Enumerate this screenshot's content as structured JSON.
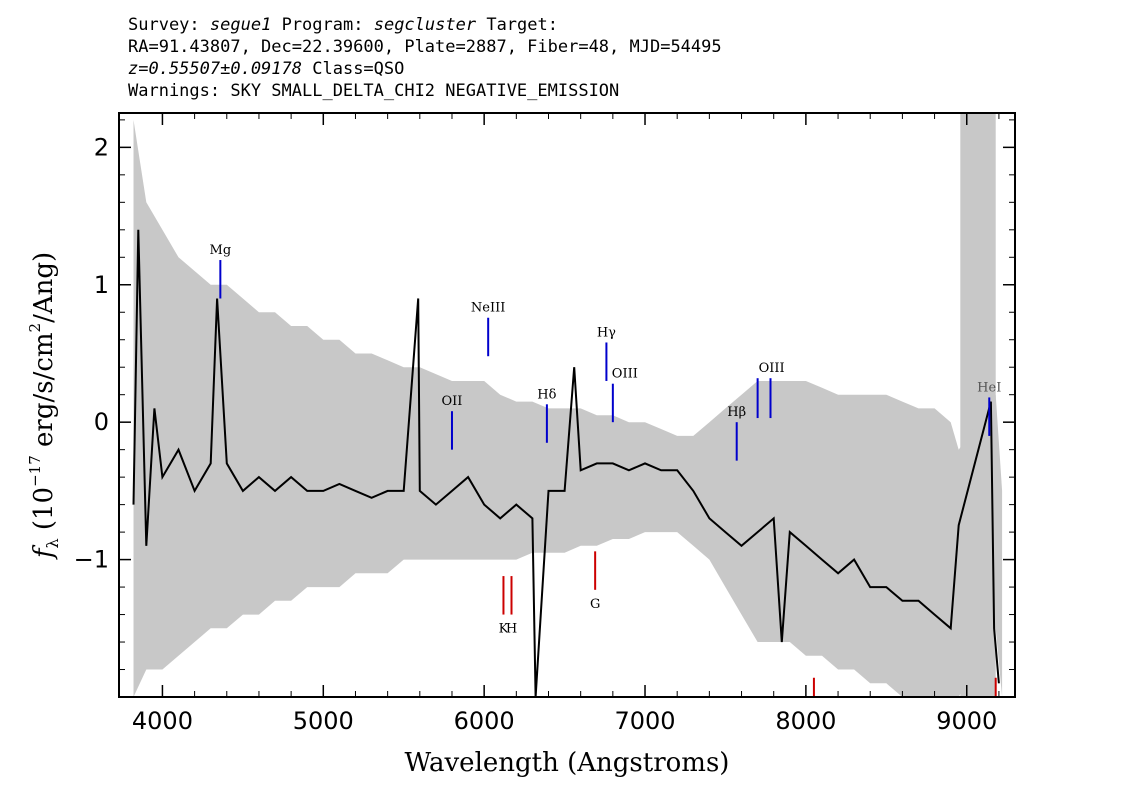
{
  "header": {
    "survey_label": "Survey:",
    "survey": "segue1",
    "program_label": "Program:",
    "program": "segcluster",
    "target_label": "Target:",
    "line2": "RA=91.43807, Dec=22.39600, Plate=2887, Fiber=48, MJD=54495",
    "redshift": "z=0.55507±0.09178",
    "class": "Class=QSO",
    "warnings": "Warnings: SKY SMALL_DELTA_CHI2 NEGATIVE_EMISSION"
  },
  "chart_data": {
    "type": "line",
    "xlabel": "Wavelength (Angstroms)",
    "ylabel_parts": [
      "f",
      "λ",
      " (10",
      "−17",
      " erg/s/cm",
      "2",
      "/Ang)"
    ],
    "xlim": [
      3730,
      9300
    ],
    "ylim": [
      -2.0,
      2.25
    ],
    "xticks": [
      4000,
      5000,
      6000,
      7000,
      8000,
      9000
    ],
    "yticks": [
      -1,
      0,
      1,
      2
    ],
    "masked_region": [
      8960,
      9180
    ],
    "series": [
      {
        "color": "#c8c8c8",
        "role": "error",
        "x": [
          3820,
          3900,
          4000,
          4100,
          4200,
          4300,
          4400,
          4500,
          4600,
          4700,
          4800,
          4900,
          5000,
          5100,
          5200,
          5300,
          5400,
          5500,
          5600,
          5700,
          5800,
          5900,
          6000,
          6100,
          6200,
          6300,
          6400,
          6500,
          6600,
          6700,
          6800,
          6900,
          7000,
          7100,
          7200,
          7300,
          7400,
          7500,
          7600,
          7700,
          7800,
          7900,
          8000,
          8100,
          8200,
          8300,
          8400,
          8500,
          8600,
          8700,
          8800,
          8900,
          8950,
          9180,
          9220
        ],
        "upper": [
          2.2,
          1.6,
          1.4,
          1.2,
          1.1,
          1.0,
          1.0,
          0.9,
          0.8,
          0.8,
          0.7,
          0.7,
          0.6,
          0.6,
          0.5,
          0.5,
          0.45,
          0.4,
          0.4,
          0.35,
          0.3,
          0.3,
          0.3,
          0.2,
          0.15,
          0.15,
          0.1,
          0.1,
          0.1,
          0.05,
          0.05,
          0.0,
          0.0,
          -0.05,
          -0.1,
          -0.1,
          0.0,
          0.1,
          0.2,
          0.3,
          0.3,
          0.3,
          0.3,
          0.25,
          0.2,
          0.2,
          0.2,
          0.2,
          0.15,
          0.1,
          0.1,
          0.0,
          -0.2,
          0.2,
          -0.5
        ],
        "lower": [
          -2.0,
          -1.8,
          -1.8,
          -1.7,
          -1.6,
          -1.5,
          -1.5,
          -1.4,
          -1.4,
          -1.3,
          -1.3,
          -1.2,
          -1.2,
          -1.2,
          -1.1,
          -1.1,
          -1.1,
          -1.0,
          -1.0,
          -1.0,
          -1.0,
          -1.0,
          -1.0,
          -1.0,
          -1.0,
          -0.95,
          -0.95,
          -0.95,
          -0.9,
          -0.9,
          -0.85,
          -0.85,
          -0.8,
          -0.8,
          -0.8,
          -0.9,
          -1.0,
          -1.2,
          -1.4,
          -1.6,
          -1.6,
          -1.6,
          -1.7,
          -1.7,
          -1.8,
          -1.8,
          -1.9,
          -1.9,
          -2.0,
          -2.0,
          -2.0,
          -2.0,
          -2.0,
          -1.5,
          -2.0
        ]
      },
      {
        "color": "#000000",
        "role": "flux",
        "x": [
          3820,
          3850,
          3900,
          3950,
          4000,
          4100,
          4200,
          4300,
          4340,
          4400,
          4500,
          4600,
          4700,
          4800,
          4900,
          5000,
          5100,
          5200,
          5300,
          5400,
          5500,
          5590,
          5600,
          5700,
          5800,
          5900,
          6000,
          6100,
          6200,
          6300,
          6320,
          6400,
          6500,
          6560,
          6600,
          6700,
          6800,
          6900,
          7000,
          7100,
          7200,
          7300,
          7400,
          7500,
          7600,
          7700,
          7800,
          7850,
          7900,
          8000,
          8100,
          8200,
          8300,
          8400,
          8500,
          8600,
          8700,
          8800,
          8900,
          8950,
          9150,
          9170,
          9200
        ],
        "y": [
          -0.6,
          1.4,
          -0.9,
          0.1,
          -0.4,
          -0.2,
          -0.5,
          -0.3,
          0.9,
          -0.3,
          -0.5,
          -0.4,
          -0.5,
          -0.4,
          -0.5,
          -0.5,
          -0.45,
          -0.5,
          -0.55,
          -0.5,
          -0.5,
          0.9,
          -0.5,
          -0.6,
          -0.5,
          -0.4,
          -0.6,
          -0.7,
          -0.6,
          -0.7,
          -2.0,
          -0.5,
          -0.5,
          0.4,
          -0.35,
          -0.3,
          -0.3,
          -0.35,
          -0.3,
          -0.35,
          -0.35,
          -0.5,
          -0.7,
          -0.8,
          -0.9,
          -0.8,
          -0.7,
          -1.6,
          -0.8,
          -0.9,
          -1.0,
          -1.1,
          -1.0,
          -1.2,
          -1.2,
          -1.3,
          -1.3,
          -1.4,
          -1.5,
          -0.75,
          0.15,
          -1.5,
          -1.9
        ]
      }
    ],
    "annotations": [
      {
        "label": "Mg",
        "x": 4360,
        "y0": 0.9,
        "y1": 1.18,
        "color": "#0000cc"
      },
      {
        "label": "OII",
        "x": 5800,
        "y0": -0.2,
        "y1": 0.08,
        "color": "#0000cc"
      },
      {
        "label": "NeIII",
        "x": 6025,
        "y0": 0.48,
        "y1": 0.76,
        "color": "#0000cc"
      },
      {
        "label": "Hδ",
        "x": 6390,
        "y0": -0.15,
        "y1": 0.13,
        "color": "#0000cc"
      },
      {
        "label": "Hγ",
        "x": 6760,
        "y0": 0.3,
        "y1": 0.58,
        "color": "#0000cc"
      },
      {
        "label": "OIII",
        "x": 6800,
        "y0": 0.0,
        "y1": 0.28,
        "color": "#0000cc",
        "label_dx": 12
      },
      {
        "label": "Hβ",
        "x": 7570,
        "y0": -0.28,
        "y1": 0.0,
        "color": "#0000cc"
      },
      {
        "label": "OIII",
        "x": 7700,
        "y0": 0.03,
        "y1": 0.32,
        "color": "#0000cc",
        "label_dx": 14
      },
      {
        "label": "",
        "x": 7780,
        "y0": 0.03,
        "y1": 0.32,
        "color": "#0000cc"
      },
      {
        "label": "HeI",
        "x": 9140,
        "y0": -0.1,
        "y1": 0.18,
        "color": "#0000cc",
        "label_color": "#555555"
      },
      {
        "label": "K",
        "x": 6120,
        "y0": -1.4,
        "y1": -1.12,
        "color": "#cc0000",
        "label_below": true
      },
      {
        "label": "H",
        "x": 6170,
        "y0": -1.4,
        "y1": -1.12,
        "color": "#cc0000",
        "label_below": true
      },
      {
        "label": "G",
        "x": 6690,
        "y0": -1.22,
        "y1": -0.94,
        "color": "#cc0000",
        "label_below": true
      },
      {
        "label": "",
        "x": 8050,
        "y0": -2.0,
        "y1": -1.86,
        "color": "#cc0000"
      },
      {
        "label": "",
        "x": 9180,
        "y0": -2.0,
        "y1": -1.86,
        "color": "#cc0000"
      }
    ]
  }
}
